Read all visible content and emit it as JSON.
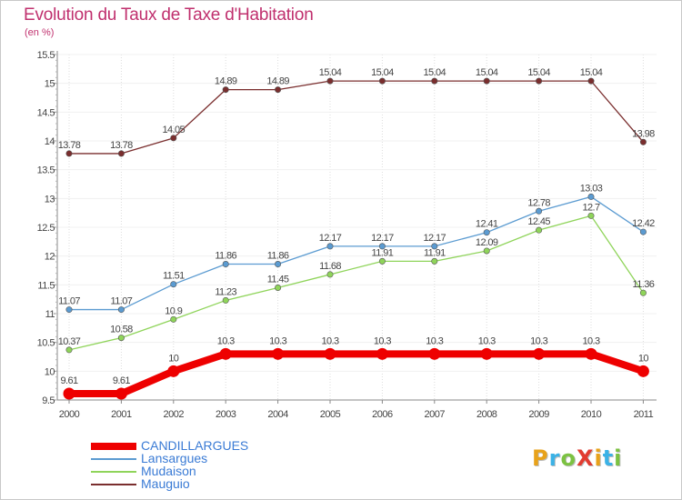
{
  "header": {
    "title": "Evolution du Taux de Taxe d'Habitation",
    "subtitle": "(en %)"
  },
  "logo": {
    "text": "ProXiti",
    "colors": [
      "#e8a21a",
      "#3bb2e6",
      "#7cc242",
      "#e23b30",
      "#e8a21a",
      "#3bb2e6",
      "#7cc242"
    ]
  },
  "chart_data": {
    "type": "line",
    "title": "Evolution du Taux de Taxe d'Habitation",
    "subtitle": "(en %)",
    "xlabel": "",
    "ylabel": "",
    "x": [
      "2000",
      "2001",
      "2002",
      "2003",
      "2004",
      "2005",
      "2006",
      "2007",
      "2008",
      "2009",
      "2010",
      "2011"
    ],
    "ylim": [
      9.5,
      15.5
    ],
    "yticks": [
      9.5,
      10,
      10.5,
      11,
      11.5,
      12,
      12.5,
      13,
      13.5,
      14,
      14.5,
      15,
      15.5
    ],
    "ytick_labels": [
      "9.5",
      "10",
      "10.5",
      "11",
      "11.5",
      "12",
      "12.5",
      "13",
      "13.5",
      "14",
      "14.5",
      "15",
      "15.5"
    ],
    "grid": "vertical",
    "legend_position": "bottom-left",
    "series": [
      {
        "name": "CANDILLARGUES",
        "color": "#ee0000",
        "values": [
          9.61,
          9.61,
          10,
          10.3,
          10.3,
          10.3,
          10.3,
          10.3,
          10.3,
          10.3,
          10.3,
          10
        ],
        "labels": [
          "9.61",
          "9.61",
          "10",
          "10.3",
          "10.3",
          "10.3",
          "10.3",
          "10.3",
          "10.3",
          "10.3",
          "10.3",
          "10"
        ]
      },
      {
        "name": "Lansargues",
        "color": "#5b9bd1",
        "values": [
          11.07,
          11.07,
          11.51,
          11.86,
          11.86,
          12.17,
          12.17,
          12.17,
          12.41,
          12.78,
          13.03,
          12.42
        ],
        "labels": [
          "11.07",
          "11.07",
          "11.51",
          "11.86",
          "11.86",
          "12.17",
          "12.17",
          "12.17",
          "12.41",
          "12.78",
          "13.03",
          "12.42"
        ]
      },
      {
        "name": "Mudaison",
        "color": "#8fd45a",
        "values": [
          10.37,
          10.58,
          10.9,
          11.23,
          11.45,
          11.68,
          11.91,
          11.91,
          12.09,
          12.45,
          12.7,
          11.36
        ],
        "labels": [
          "10.37",
          "10.58",
          "10.9",
          "11.23",
          "11.45",
          "11.68",
          "11.91",
          "11.91",
          "12.09",
          "12.45",
          "12.7",
          "11.36"
        ]
      },
      {
        "name": "Mauguio",
        "color": "#7a2e2e",
        "values": [
          13.78,
          13.78,
          14.05,
          14.89,
          14.89,
          15.04,
          15.04,
          15.04,
          15.04,
          15.04,
          15.04,
          13.98
        ],
        "labels": [
          "13.78",
          "13.78",
          "14.05",
          "14.89",
          "14.89",
          "15.04",
          "15.04",
          "15.04",
          "15.04",
          "15.04",
          "15.04",
          "13.98"
        ]
      }
    ]
  }
}
